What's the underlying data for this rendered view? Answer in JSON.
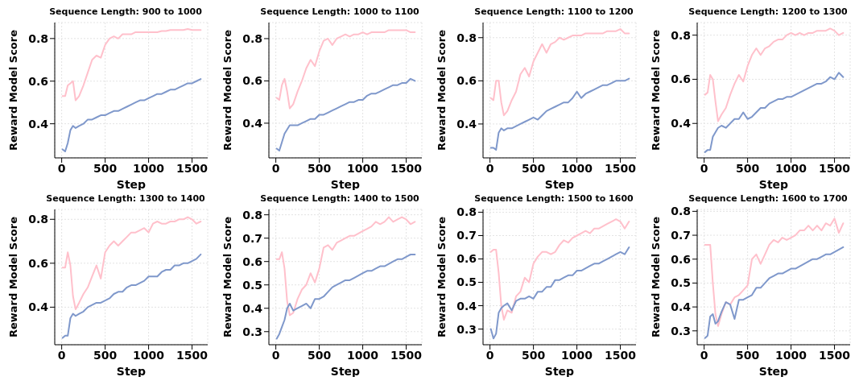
{
  "chart_data": [
    {
      "type": "line",
      "title": "Sequence Length: 900 to 1000",
      "xlabel": "Step",
      "ylabel": "Reward Model Score",
      "grid": true,
      "xlim": [
        -80,
        1680
      ],
      "xticks": [
        0,
        500,
        1000,
        1500
      ],
      "ylim": [
        0.24,
        0.875
      ],
      "yticks": [
        0.4,
        0.6,
        0.8
      ],
      "x": [
        10,
        40,
        70,
        100,
        130,
        160,
        200,
        250,
        300,
        350,
        400,
        450,
        500,
        550,
        600,
        650,
        700,
        750,
        800,
        850,
        900,
        950,
        1000,
        1050,
        1100,
        1150,
        1200,
        1250,
        1300,
        1350,
        1400,
        1450,
        1500,
        1550,
        1600
      ],
      "series": [
        {
          "color": "#ffc0cb",
          "values": [
            0.53,
            0.53,
            0.58,
            0.59,
            0.6,
            0.51,
            0.53,
            0.58,
            0.64,
            0.7,
            0.72,
            0.71,
            0.77,
            0.8,
            0.81,
            0.8,
            0.82,
            0.82,
            0.82,
            0.83,
            0.83,
            0.83,
            0.83,
            0.83,
            0.83,
            0.835,
            0.835,
            0.84,
            0.84,
            0.84,
            0.84,
            0.845,
            0.84,
            0.84,
            0.84
          ]
        },
        {
          "color": "#7f98cb",
          "values": [
            0.28,
            0.27,
            0.31,
            0.37,
            0.39,
            0.38,
            0.39,
            0.4,
            0.42,
            0.42,
            0.43,
            0.44,
            0.44,
            0.45,
            0.46,
            0.46,
            0.47,
            0.48,
            0.49,
            0.5,
            0.51,
            0.51,
            0.52,
            0.53,
            0.54,
            0.54,
            0.55,
            0.56,
            0.56,
            0.57,
            0.58,
            0.59,
            0.59,
            0.6,
            0.61
          ]
        }
      ]
    },
    {
      "type": "line",
      "title": "Sequence Length: 1000 to 1100",
      "xlabel": "Step",
      "ylabel": "Reward Model Score",
      "grid": true,
      "xlim": [
        -80,
        1680
      ],
      "xticks": [
        0,
        500,
        1000,
        1500
      ],
      "ylim": [
        0.236,
        0.876
      ],
      "yticks": [
        0.4,
        0.6,
        0.8
      ],
      "x": [
        10,
        40,
        70,
        100,
        130,
        160,
        200,
        250,
        300,
        350,
        400,
        450,
        500,
        550,
        600,
        650,
        700,
        750,
        800,
        850,
        900,
        950,
        1000,
        1050,
        1100,
        1150,
        1200,
        1250,
        1300,
        1350,
        1400,
        1450,
        1500,
        1550,
        1600
      ],
      "series": [
        {
          "color": "#ffc0cb",
          "values": [
            0.52,
            0.51,
            0.58,
            0.61,
            0.55,
            0.47,
            0.49,
            0.55,
            0.6,
            0.66,
            0.7,
            0.67,
            0.74,
            0.79,
            0.8,
            0.77,
            0.8,
            0.81,
            0.82,
            0.81,
            0.82,
            0.82,
            0.83,
            0.82,
            0.83,
            0.83,
            0.83,
            0.83,
            0.84,
            0.84,
            0.84,
            0.84,
            0.84,
            0.83,
            0.83
          ]
        },
        {
          "color": "#7f98cb",
          "values": [
            0.28,
            0.27,
            0.31,
            0.35,
            0.37,
            0.39,
            0.39,
            0.39,
            0.4,
            0.41,
            0.42,
            0.42,
            0.44,
            0.44,
            0.45,
            0.46,
            0.47,
            0.48,
            0.49,
            0.5,
            0.5,
            0.51,
            0.51,
            0.53,
            0.54,
            0.54,
            0.55,
            0.56,
            0.57,
            0.58,
            0.58,
            0.59,
            0.59,
            0.61,
            0.6
          ]
        }
      ]
    },
    {
      "type": "line",
      "title": "Sequence Length: 1100 to 1200",
      "xlabel": "Step",
      "ylabel": "Reward Model Score",
      "grid": true,
      "xlim": [
        -80,
        1680
      ],
      "xticks": [
        0,
        500,
        1000,
        1500
      ],
      "ylim": [
        0.243,
        0.87
      ],
      "yticks": [
        0.4,
        0.6,
        0.8
      ],
      "x": [
        10,
        40,
        70,
        100,
        130,
        160,
        200,
        250,
        300,
        350,
        400,
        450,
        500,
        550,
        600,
        650,
        700,
        750,
        800,
        850,
        900,
        950,
        1000,
        1050,
        1100,
        1150,
        1200,
        1250,
        1300,
        1350,
        1400,
        1450,
        1500,
        1550,
        1600
      ],
      "series": [
        {
          "color": "#ffc0cb",
          "values": [
            0.52,
            0.51,
            0.6,
            0.6,
            0.5,
            0.44,
            0.46,
            0.51,
            0.55,
            0.63,
            0.66,
            0.62,
            0.69,
            0.73,
            0.77,
            0.73,
            0.77,
            0.78,
            0.8,
            0.79,
            0.8,
            0.81,
            0.81,
            0.81,
            0.82,
            0.82,
            0.82,
            0.82,
            0.82,
            0.83,
            0.83,
            0.83,
            0.84,
            0.82,
            0.82
          ]
        },
        {
          "color": "#7f98cb",
          "values": [
            0.29,
            0.29,
            0.28,
            0.36,
            0.38,
            0.37,
            0.38,
            0.38,
            0.39,
            0.4,
            0.41,
            0.42,
            0.43,
            0.42,
            0.44,
            0.46,
            0.47,
            0.48,
            0.49,
            0.5,
            0.5,
            0.52,
            0.55,
            0.52,
            0.54,
            0.55,
            0.56,
            0.57,
            0.58,
            0.58,
            0.59,
            0.6,
            0.6,
            0.6,
            0.61
          ]
        }
      ]
    },
    {
      "type": "line",
      "title": "Sequence Length: 1200 to 1300",
      "xlabel": "Step",
      "ylabel": "Reward Model Score",
      "grid": true,
      "xlim": [
        -80,
        1680
      ],
      "xticks": [
        0,
        500,
        1000,
        1500
      ],
      "ylim": [
        0.244,
        0.857
      ],
      "yticks": [
        0.4,
        0.6,
        0.8
      ],
      "x": [
        10,
        40,
        70,
        100,
        130,
        160,
        200,
        250,
        300,
        350,
        400,
        450,
        500,
        550,
        600,
        650,
        700,
        750,
        800,
        850,
        900,
        950,
        1000,
        1050,
        1100,
        1150,
        1200,
        1250,
        1300,
        1350,
        1400,
        1450,
        1500,
        1550,
        1600
      ],
      "series": [
        {
          "color": "#ffc0cb",
          "values": [
            0.53,
            0.54,
            0.62,
            0.6,
            0.5,
            0.41,
            0.44,
            0.47,
            0.53,
            0.58,
            0.62,
            0.59,
            0.66,
            0.71,
            0.74,
            0.71,
            0.74,
            0.75,
            0.77,
            0.78,
            0.78,
            0.8,
            0.81,
            0.8,
            0.81,
            0.8,
            0.81,
            0.81,
            0.82,
            0.82,
            0.82,
            0.83,
            0.82,
            0.8,
            0.81
          ]
        },
        {
          "color": "#7f98cb",
          "values": [
            0.27,
            0.28,
            0.28,
            0.34,
            0.36,
            0.38,
            0.39,
            0.38,
            0.4,
            0.42,
            0.42,
            0.45,
            0.42,
            0.43,
            0.45,
            0.47,
            0.47,
            0.49,
            0.5,
            0.51,
            0.51,
            0.52,
            0.52,
            0.53,
            0.54,
            0.55,
            0.56,
            0.57,
            0.58,
            0.58,
            0.59,
            0.61,
            0.6,
            0.63,
            0.61
          ]
        }
      ]
    },
    {
      "type": "line",
      "title": "Sequence Length: 1300 to 1400",
      "xlabel": "Step",
      "ylabel": "Reward Model Score",
      "grid": true,
      "xlim": [
        -80,
        1680
      ],
      "xticks": [
        0,
        500,
        1000,
        1500
      ],
      "ylim": [
        0.229,
        0.845
      ],
      "yticks": [
        0.4,
        0.6,
        0.8
      ],
      "x": [
        10,
        40,
        70,
        100,
        130,
        160,
        200,
        250,
        300,
        350,
        400,
        450,
        500,
        550,
        600,
        650,
        700,
        750,
        800,
        850,
        900,
        950,
        1000,
        1050,
        1100,
        1150,
        1200,
        1250,
        1300,
        1350,
        1400,
        1450,
        1500,
        1550,
        1600
      ],
      "series": [
        {
          "color": "#ffc0cb",
          "values": [
            0.58,
            0.58,
            0.65,
            0.59,
            0.45,
            0.39,
            0.42,
            0.46,
            0.49,
            0.54,
            0.59,
            0.53,
            0.65,
            0.68,
            0.7,
            0.68,
            0.7,
            0.72,
            0.74,
            0.74,
            0.75,
            0.76,
            0.74,
            0.78,
            0.79,
            0.78,
            0.78,
            0.79,
            0.79,
            0.8,
            0.8,
            0.81,
            0.8,
            0.78,
            0.79
          ]
        },
        {
          "color": "#7f98cb",
          "values": [
            0.26,
            0.27,
            0.27,
            0.35,
            0.37,
            0.36,
            0.37,
            0.38,
            0.4,
            0.41,
            0.42,
            0.42,
            0.43,
            0.44,
            0.46,
            0.47,
            0.47,
            0.49,
            0.5,
            0.5,
            0.51,
            0.52,
            0.54,
            0.54,
            0.54,
            0.56,
            0.57,
            0.57,
            0.59,
            0.59,
            0.6,
            0.6,
            0.61,
            0.62,
            0.64
          ]
        }
      ]
    },
    {
      "type": "line",
      "title": "Sequence Length: 1400 to 1500",
      "xlabel": "Step",
      "ylabel": "Reward Model Score",
      "grid": true,
      "xlim": [
        -80,
        1680
      ],
      "xticks": [
        0,
        500,
        1000,
        1500
      ],
      "ylim": [
        0.244,
        0.823
      ],
      "yticks": [
        0.3,
        0.4,
        0.5,
        0.6,
        0.7,
        0.8
      ],
      "x": [
        10,
        40,
        70,
        100,
        130,
        160,
        200,
        250,
        300,
        350,
        400,
        450,
        500,
        550,
        600,
        650,
        700,
        750,
        800,
        850,
        900,
        950,
        1000,
        1050,
        1100,
        1150,
        1200,
        1250,
        1300,
        1350,
        1400,
        1450,
        1500,
        1550,
        1600
      ],
      "series": [
        {
          "color": "#ffc0cb",
          "values": [
            0.61,
            0.61,
            0.64,
            0.57,
            0.43,
            0.37,
            0.38,
            0.44,
            0.48,
            0.5,
            0.55,
            0.51,
            0.57,
            0.66,
            0.67,
            0.65,
            0.68,
            0.69,
            0.7,
            0.71,
            0.71,
            0.72,
            0.73,
            0.74,
            0.75,
            0.77,
            0.76,
            0.77,
            0.79,
            0.77,
            0.78,
            0.79,
            0.78,
            0.76,
            0.77
          ]
        },
        {
          "color": "#7f98cb",
          "values": [
            0.27,
            0.29,
            0.32,
            0.35,
            0.4,
            0.42,
            0.39,
            0.4,
            0.41,
            0.42,
            0.4,
            0.44,
            0.44,
            0.45,
            0.47,
            0.49,
            0.5,
            0.51,
            0.52,
            0.52,
            0.53,
            0.54,
            0.55,
            0.56,
            0.56,
            0.57,
            0.58,
            0.58,
            0.59,
            0.6,
            0.61,
            0.61,
            0.62,
            0.63,
            0.63
          ]
        }
      ]
    },
    {
      "type": "line",
      "title": "Sequence Length: 1500 to 1600",
      "xlabel": "Step",
      "ylabel": "Reward Model Score",
      "grid": true,
      "xlim": [
        -80,
        1680
      ],
      "xticks": [
        0,
        500,
        1000,
        1500
      ],
      "ylim": [
        0.233,
        0.812
      ],
      "yticks": [
        0.3,
        0.4,
        0.5,
        0.6,
        0.7,
        0.8
      ],
      "x": [
        10,
        40,
        70,
        100,
        130,
        160,
        200,
        250,
        300,
        350,
        400,
        450,
        500,
        550,
        600,
        650,
        700,
        750,
        800,
        850,
        900,
        950,
        1000,
        1050,
        1100,
        1150,
        1200,
        1250,
        1300,
        1350,
        1400,
        1450,
        1500,
        1550,
        1600
      ],
      "series": [
        {
          "color": "#ffc0cb",
          "values": [
            0.63,
            0.64,
            0.64,
            0.54,
            0.4,
            0.34,
            0.38,
            0.37,
            0.44,
            0.46,
            0.52,
            0.5,
            0.58,
            0.61,
            0.63,
            0.63,
            0.62,
            0.63,
            0.66,
            0.68,
            0.67,
            0.69,
            0.7,
            0.71,
            0.72,
            0.71,
            0.73,
            0.73,
            0.74,
            0.75,
            0.76,
            0.77,
            0.76,
            0.73,
            0.76
          ]
        },
        {
          "color": "#7f98cb",
          "values": [
            0.3,
            0.26,
            0.28,
            0.37,
            0.39,
            0.4,
            0.41,
            0.38,
            0.42,
            0.43,
            0.43,
            0.44,
            0.43,
            0.46,
            0.46,
            0.48,
            0.48,
            0.51,
            0.51,
            0.52,
            0.53,
            0.53,
            0.55,
            0.55,
            0.56,
            0.57,
            0.58,
            0.58,
            0.59,
            0.6,
            0.61,
            0.62,
            0.63,
            0.62,
            0.65
          ]
        }
      ]
    },
    {
      "type": "line",
      "title": "Sequence Length: 1600 to 1700",
      "xlabel": "Step",
      "ylabel": "Reward Model Score",
      "grid": true,
      "xlim": [
        -80,
        1680
      ],
      "xticks": [
        0,
        500,
        1000,
        1500
      ],
      "ylim": [
        0.242,
        0.808
      ],
      "yticks": [
        0.3,
        0.4,
        0.5,
        0.6,
        0.7,
        0.8
      ],
      "x": [
        10,
        40,
        70,
        100,
        130,
        160,
        200,
        250,
        300,
        350,
        400,
        450,
        500,
        550,
        600,
        650,
        700,
        750,
        800,
        850,
        900,
        950,
        1000,
        1050,
        1100,
        1150,
        1200,
        1250,
        1300,
        1350,
        1400,
        1450,
        1500,
        1550,
        1600
      ],
      "series": [
        {
          "color": "#ffc0cb",
          "values": [
            0.66,
            0.66,
            0.66,
            0.5,
            0.37,
            0.32,
            0.37,
            0.42,
            0.41,
            0.44,
            0.45,
            0.47,
            0.49,
            0.6,
            0.62,
            0.58,
            0.62,
            0.66,
            0.68,
            0.67,
            0.69,
            0.68,
            0.69,
            0.7,
            0.72,
            0.72,
            0.74,
            0.72,
            0.74,
            0.72,
            0.75,
            0.74,
            0.77,
            0.71,
            0.75
          ]
        },
        {
          "color": "#7f98cb",
          "values": [
            0.27,
            0.28,
            0.36,
            0.37,
            0.33,
            0.34,
            0.38,
            0.42,
            0.41,
            0.35,
            0.43,
            0.43,
            0.44,
            0.45,
            0.48,
            0.48,
            0.5,
            0.52,
            0.53,
            0.54,
            0.54,
            0.55,
            0.56,
            0.56,
            0.57,
            0.58,
            0.59,
            0.6,
            0.6,
            0.61,
            0.62,
            0.62,
            0.63,
            0.64,
            0.65
          ]
        }
      ]
    }
  ]
}
